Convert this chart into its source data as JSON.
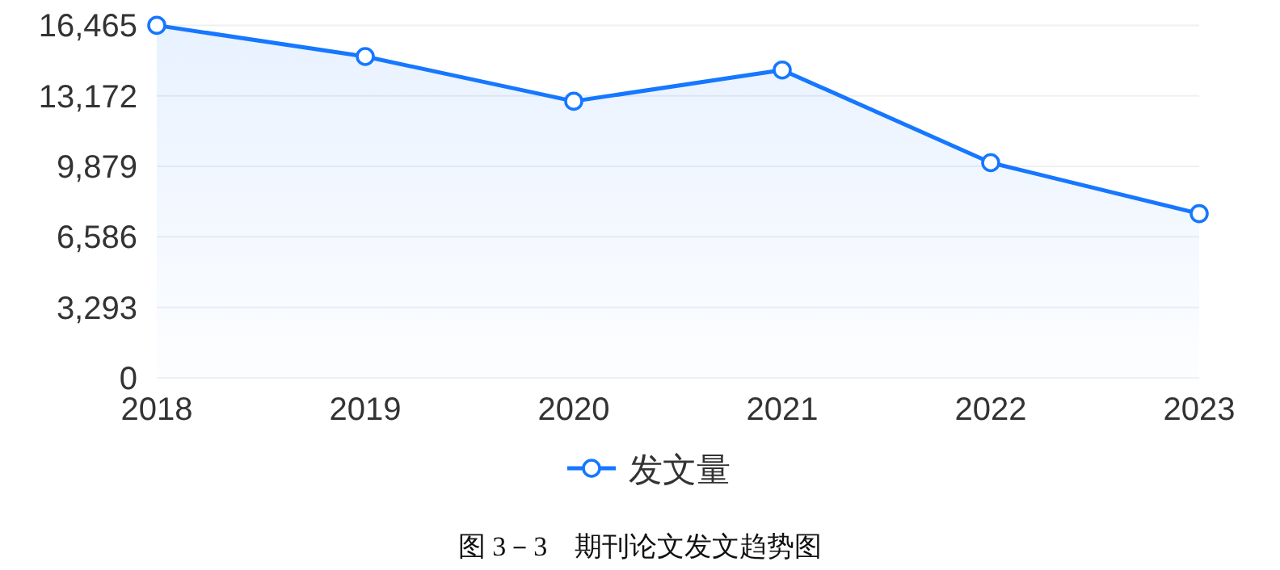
{
  "chart_data": {
    "type": "area",
    "categories": [
      "2018",
      "2019",
      "2020",
      "2021",
      "2022",
      "2023"
    ],
    "series": [
      {
        "name": "发文量",
        "color": "#1677ff",
        "values": [
          16465,
          15010,
          12920,
          14380,
          10050,
          7670
        ]
      }
    ],
    "ylim": [
      0,
      16465
    ],
    "yticks": [
      0,
      {
        "value": 3293,
        "label": "3,293"
      },
      {
        "value": 6586,
        "label": "6,586"
      },
      {
        "value": 9879,
        "label": "9,879"
      },
      {
        "value": 13172,
        "label": "13,172"
      },
      {
        "value": 16465,
        "label": "16,465"
      }
    ],
    "grid": "y",
    "legend": "bottom",
    "marker": "circle",
    "line_style": "solid",
    "annotations": [
      "图 3－3　期刊论文发文趋势图"
    ]
  }
}
